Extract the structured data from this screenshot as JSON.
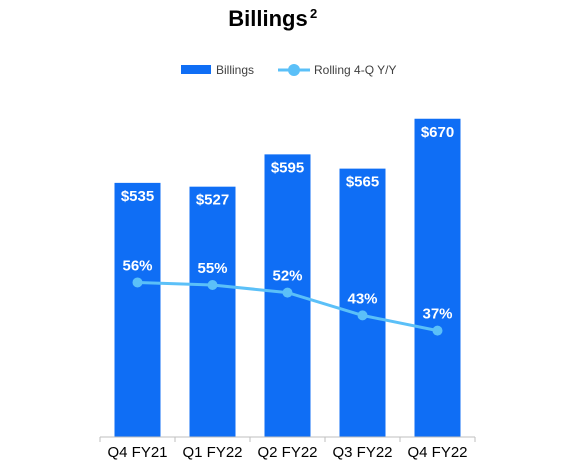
{
  "chart_data": {
    "type": "bar",
    "title": "Billings",
    "title_superscript": "2",
    "categories": [
      "Q4 FY21",
      "Q1 FY22",
      "Q2 FY22",
      "Q3 FY22",
      "Q4 FY22"
    ],
    "series": [
      {
        "name": "Billings",
        "type": "bar",
        "values": [
          535,
          527,
          595,
          565,
          670
        ],
        "labels": [
          "$535",
          "$527",
          "$595",
          "$565",
          "$670"
        ],
        "color": "#0F6EF5"
      },
      {
        "name": "Rolling 4-Q Y/Y",
        "type": "line",
        "values": [
          56,
          55,
          52,
          43,
          37
        ],
        "labels": [
          "56%",
          "55%",
          "52%",
          "43%",
          "37%"
        ],
        "color": "#5BC0F8"
      }
    ],
    "ylim": [
      0,
      720
    ],
    "line_ylim": [
      -5,
      130
    ],
    "grid": false,
    "legend_position": "top-center"
  }
}
